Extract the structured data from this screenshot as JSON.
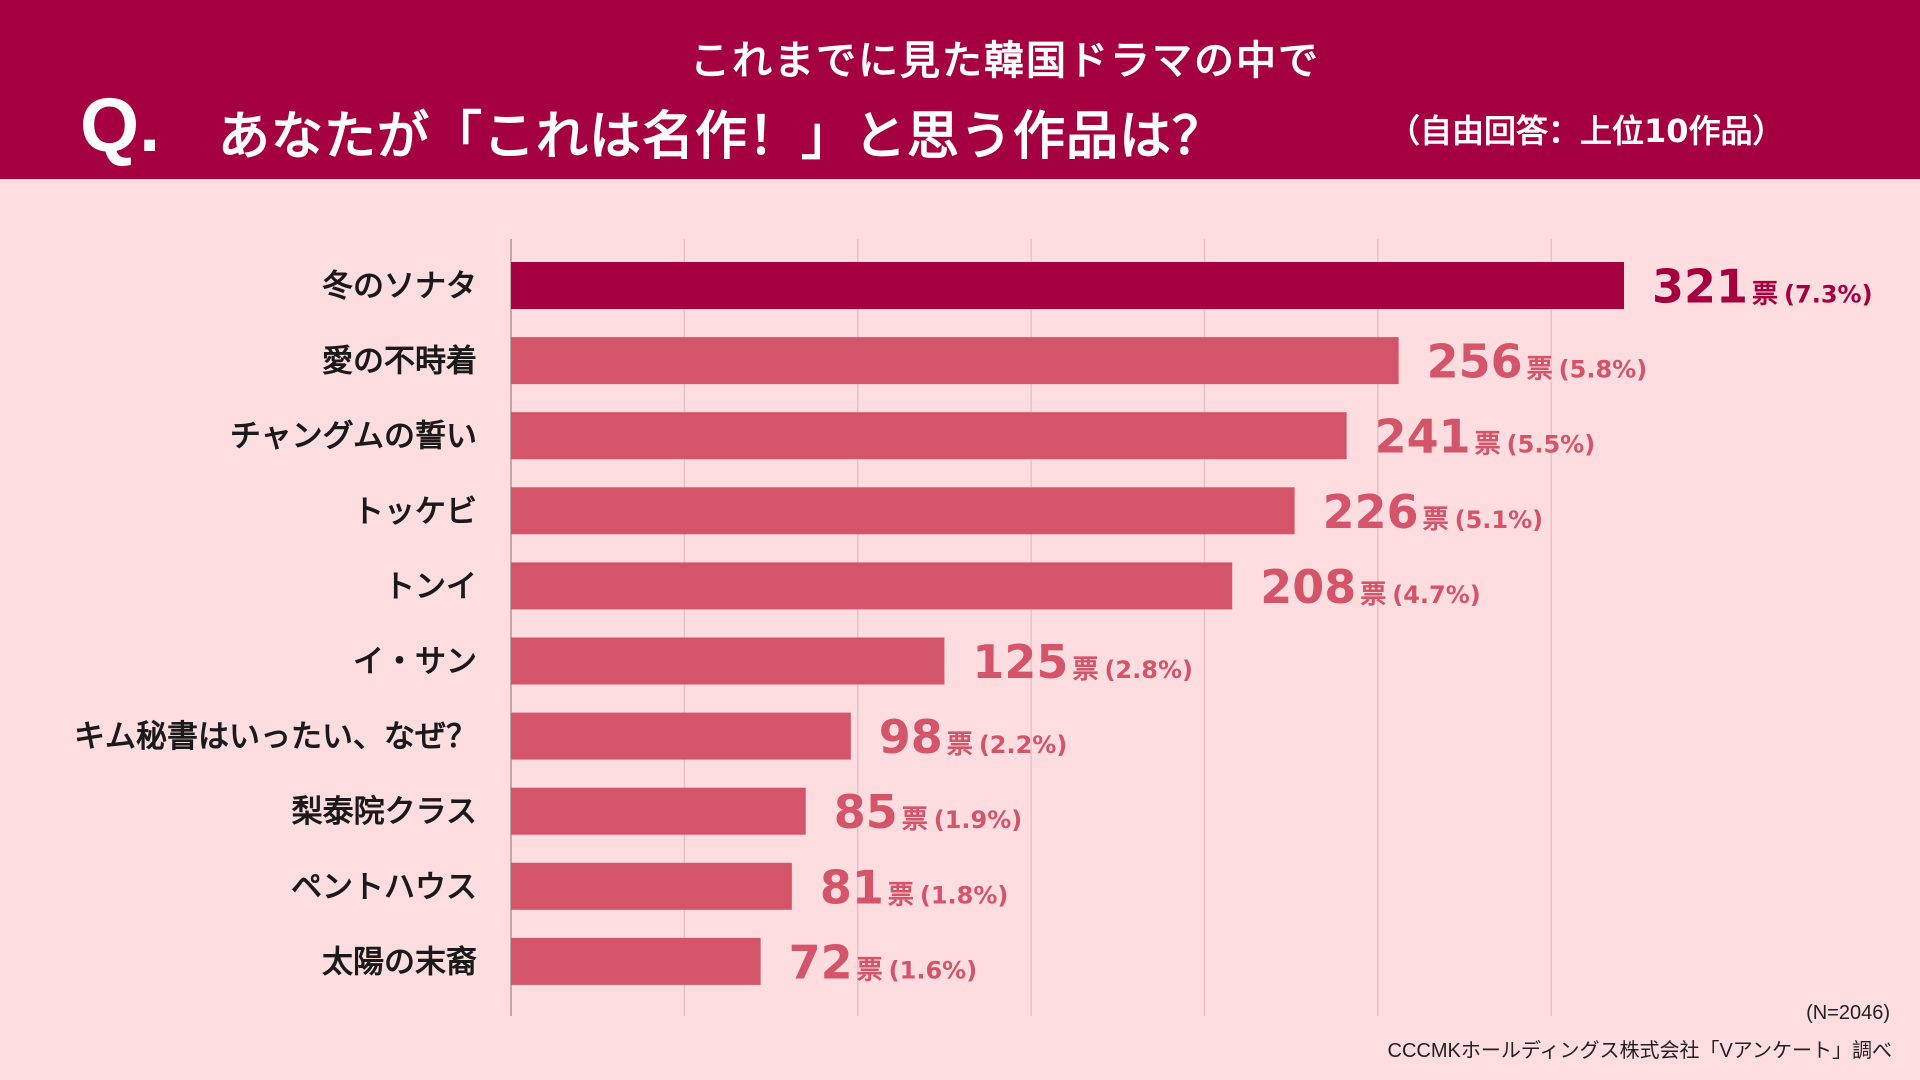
{
  "header": {
    "subtitle": "これまでに見た韓国ドラマの中で",
    "q_mark": "Q.",
    "question": "あなたが「これは名作！」と思う作品は？",
    "note": "（自由回答：上位10作品）"
  },
  "chart_data": {
    "type": "bar",
    "orientation": "horizontal",
    "categories": [
      "冬のソナタ",
      "愛の不時着",
      "チャングムの誓い",
      "トッケビ",
      "トンイ",
      "イ・サン",
      "キム秘書はいったい、なぜ？",
      "梨泰院クラス",
      "ペントハウス",
      "太陽の末裔"
    ],
    "values": [
      321,
      256,
      241,
      226,
      208,
      125,
      98,
      85,
      81,
      72
    ],
    "value_unit": "票",
    "percent_labels": [
      "(7.3%)",
      "(5.8%)",
      "(5.5%)",
      "(5.1%)",
      "(4.7%)",
      "(2.8%)",
      "(2.2%)",
      "(1.9%)",
      "(1.8%)",
      "(1.6%)"
    ],
    "xlim": [
      0,
      350
    ],
    "grid": true,
    "grid_step": 50,
    "colors": {
      "highlight": "#A5003F",
      "default": "#D4546A"
    }
  },
  "footer": {
    "sample_size": "(N=2046)",
    "source": "CCCMKホールディングス株式会社「Vアンケート」調べ"
  },
  "colors": {
    "header_bg": "#A5003F",
    "page_bg": "#FDDDE0"
  }
}
